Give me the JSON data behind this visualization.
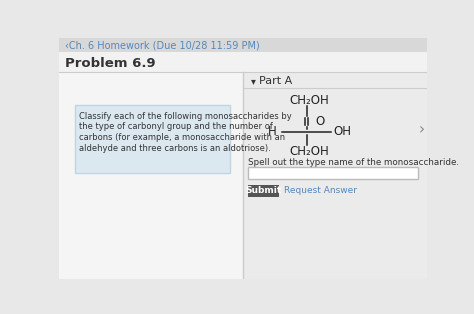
{
  "header_text": "‹Ch. 6 Homework (Due 10/28 11:59 PM)",
  "problem_text": "Problem 6.9",
  "instruction_text": "Classify each of the following monosaccharides by\nthe type of carbonyl group and the number of\ncarbons (for example, a monosaccharide with an\naldehyde and three carbons is an aldotriose).",
  "part_label": "Part A",
  "spell_out_text": "Spell out the type name of the monosaccharide.",
  "submit_btn": "Submit",
  "request_answer_text": "Request Answer",
  "bg_color": "#e8e8e8",
  "main_bg": "#f2f2f2",
  "left_panel_bg": "#f2f2f2",
  "right_panel_bg": "#eeeeee",
  "left_box_bg": "#dce8f0",
  "left_box_border": "#c0d4e4",
  "header_color": "#5588bb",
  "text_color": "#333333",
  "mol_color": "#222222",
  "submit_btn_color": "#555555",
  "divider_color": "#cccccc",
  "input_bg": "#ffffff",
  "input_border": "#bbbbbb",
  "molecule": {
    "CH2OH_top": "CH₂OH",
    "O_label": "O",
    "H_label": "H",
    "OH_label": "OH",
    "CH2OH_bottom": "CH₂OH"
  }
}
